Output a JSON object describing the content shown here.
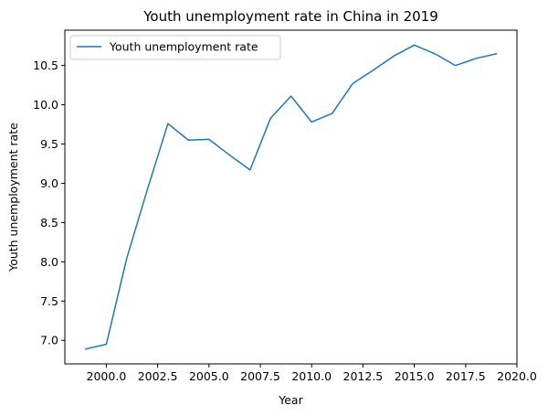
{
  "chart_data": {
    "type": "line",
    "title": "Youth unemployment rate in China in 2019",
    "xlabel": "Year",
    "ylabel": "Youth unemployment rate",
    "xlim": [
      1997.98,
      2020
    ],
    "ylim": [
      6.7,
      10.95
    ],
    "xticks": [
      2000.0,
      2002.5,
      2005.0,
      2007.5,
      2010.0,
      2012.5,
      2015.0,
      2017.5,
      2020.0
    ],
    "xtick_labels": [
      "2000.0",
      "2002.5",
      "2005.0",
      "2007.5",
      "2010.0",
      "2012.5",
      "2015.0",
      "2017.5",
      "2020.0"
    ],
    "yticks": [
      7.0,
      7.5,
      8.0,
      8.5,
      9.0,
      9.5,
      10.0,
      10.5
    ],
    "ytick_labels": [
      "7.0",
      "7.5",
      "8.0",
      "8.5",
      "9.0",
      "9.5",
      "10.0",
      "10.5"
    ],
    "grid": false,
    "legend_position": "upper-left",
    "series": [
      {
        "name": "Youth unemployment rate",
        "color": "#1f77b4",
        "x": [
          1999,
          2000,
          2001,
          2002,
          2003,
          2004,
          2005,
          2006,
          2007,
          2008,
          2009,
          2010,
          2011,
          2012,
          2013,
          2014,
          2015,
          2016,
          2017,
          2018,
          2019
        ],
        "y": [
          6.89,
          6.95,
          8.05,
          8.92,
          9.76,
          9.55,
          9.56,
          9.36,
          9.17,
          9.83,
          10.11,
          9.78,
          9.89,
          10.27,
          10.44,
          10.62,
          10.76,
          10.65,
          10.5,
          10.59,
          10.65
        ]
      }
    ]
  }
}
